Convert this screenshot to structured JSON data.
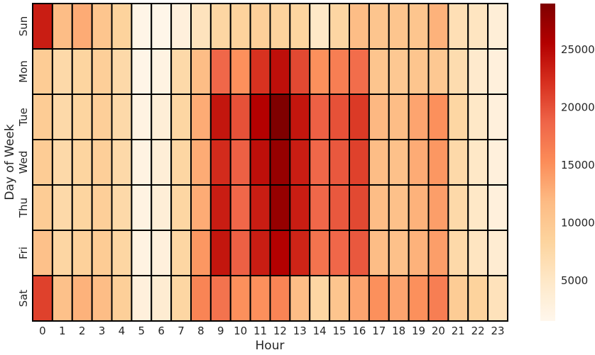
{
  "chart_data": {
    "type": "heatmap",
    "xlabel": "Hour",
    "ylabel": "Day of Week",
    "x_categories": [
      "0",
      "1",
      "2",
      "3",
      "4",
      "5",
      "6",
      "7",
      "8",
      "9",
      "10",
      "11",
      "12",
      "13",
      "14",
      "15",
      "16",
      "17",
      "18",
      "19",
      "20",
      "21",
      "22",
      "23"
    ],
    "y_categories": [
      "Sun",
      "Mon",
      "Tue",
      "Wed",
      "Thu",
      "Fri",
      "Sat"
    ],
    "values": [
      [
        23500,
        11500,
        13000,
        10500,
        8500,
        2000,
        1800,
        3000,
        5800,
        8000,
        8500,
        9000,
        8500,
        8200,
        5000,
        8000,
        11500,
        10500,
        10500,
        10500,
        12500,
        6500,
        5500,
        3500
      ],
      [
        9500,
        7500,
        8200,
        9000,
        7500,
        2000,
        2500,
        7500,
        11500,
        18500,
        15000,
        22000,
        24500,
        20500,
        15000,
        16500,
        18000,
        10500,
        10000,
        10500,
        10000,
        7000,
        4500,
        3000
      ],
      [
        9500,
        7500,
        8200,
        9000,
        7500,
        2500,
        3500,
        8000,
        13000,
        24000,
        20000,
        25500,
        29000,
        24000,
        19000,
        20000,
        21500,
        12000,
        11500,
        13500,
        15000,
        8000,
        5000,
        3000
      ],
      [
        9500,
        7500,
        8200,
        9000,
        7500,
        2500,
        3500,
        8000,
        13000,
        22500,
        19000,
        24500,
        27500,
        23500,
        18500,
        19500,
        21000,
        11500,
        11000,
        13000,
        14500,
        7500,
        5000,
        3000
      ],
      [
        9500,
        7500,
        8200,
        9000,
        7500,
        2500,
        3500,
        8000,
        13000,
        23500,
        18500,
        23500,
        27500,
        23500,
        18500,
        19500,
        20500,
        11500,
        11000,
        12500,
        14000,
        7500,
        5000,
        3000
      ],
      [
        11000,
        8000,
        8800,
        9500,
        8000,
        2500,
        3000,
        8000,
        14500,
        24000,
        19000,
        23500,
        25500,
        23000,
        17500,
        18500,
        19500,
        11500,
        11000,
        12500,
        14000,
        7500,
        5500,
        4000
      ],
      [
        21000,
        11000,
        12500,
        11500,
        9000,
        3000,
        4000,
        8000,
        16000,
        17500,
        15000,
        15000,
        16000,
        11500,
        8000,
        10500,
        13500,
        15000,
        13500,
        15000,
        16500,
        9500,
        8500,
        6000
      ]
    ],
    "vmin": 1500,
    "vmax": 29000,
    "colormap": "OrRd",
    "colorbar_ticks": [
      5000,
      10000,
      15000,
      20000,
      25000
    ],
    "grid_line_color": "#000000"
  }
}
